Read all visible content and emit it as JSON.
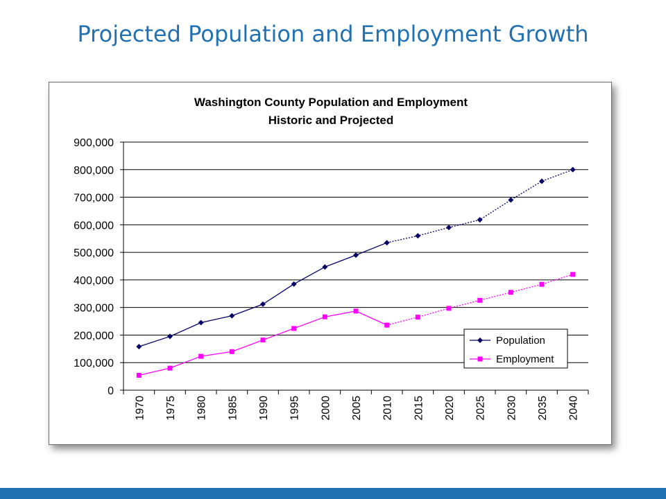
{
  "slide": {
    "title": "Projected Population and Employment Growth",
    "accent_color": "#2271b3"
  },
  "chart_data": {
    "type": "line",
    "title": "Washington County Population and Employment",
    "subtitle": "Historic and Projected",
    "xlabel": "",
    "ylabel": "",
    "categories": [
      "1970",
      "1975",
      "1980",
      "1985",
      "1990",
      "1995",
      "2000",
      "2005",
      "2010",
      "2015",
      "2020",
      "2025",
      "2030",
      "2035",
      "2040"
    ],
    "historic_through": "2010",
    "ylim": [
      0,
      900000
    ],
    "yticks": [
      0,
      100000,
      200000,
      300000,
      400000,
      500000,
      600000,
      700000,
      800000,
      900000
    ],
    "ytick_labels": [
      "0",
      "100,000",
      "200,000",
      "300,000",
      "400,000",
      "500,000",
      "600,000",
      "700,000",
      "800,000",
      "900,000"
    ],
    "grid": "horizontal",
    "legend_position": "bottom-right",
    "series": [
      {
        "name": "Population",
        "color": "#000066",
        "marker": "diamond",
        "values": [
          158000,
          195000,
          245000,
          270000,
          312000,
          385000,
          447000,
          490000,
          535000,
          560000,
          590000,
          618000,
          690000,
          758000,
          800000
        ]
      },
      {
        "name": "Employment",
        "color": "#ff00ff",
        "marker": "square",
        "values": [
          54000,
          80000,
          123000,
          140000,
          182000,
          224000,
          266000,
          287000,
          236000,
          265000,
          297000,
          326000,
          355000,
          384000,
          420000
        ]
      }
    ]
  }
}
